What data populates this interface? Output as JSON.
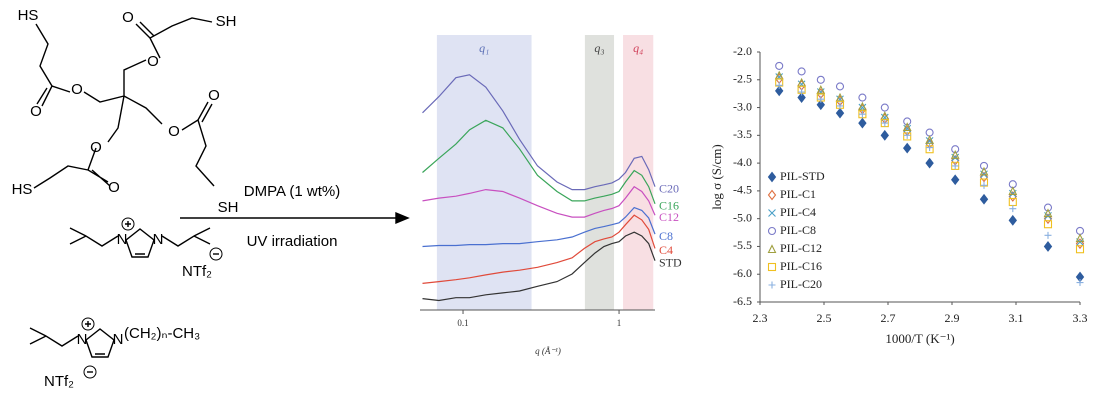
{
  "scheme": {
    "crosslinker_atoms": [
      "HS",
      "O",
      "O",
      "O",
      "O",
      "SH",
      "O",
      "O",
      "SH",
      "O",
      "O",
      "HS"
    ],
    "reagent": "DMPA (1 wt%)",
    "condition": "UV irradiation",
    "monomer1_atoms": [
      "N",
      "N",
      "NTf₂"
    ],
    "monomer2_atoms": [
      "N",
      "N",
      "(CH₂)ₙ-CH₃",
      "NTf₂"
    ]
  },
  "chart_data": [
    {
      "type": "line",
      "xlabel": "q (Å⁻¹)",
      "log_x": true,
      "xlim": [
        0.053,
        1.7
      ],
      "ylim": [
        0,
        290
      ],
      "xticks": [
        0.1,
        1
      ],
      "bands": [
        {
          "label": "q₁",
          "range": [
            0.068,
            0.275
          ],
          "color": "#dfe3f3",
          "text_color": "#5b6fb5"
        },
        {
          "label": "q₃",
          "range": [
            0.604,
            0.929
          ],
          "color": "#dfe1dd",
          "text_color": "#444444"
        },
        {
          "label": "q₄",
          "range": [
            1.061,
            1.657
          ],
          "color": "#f8dfe3",
          "text_color": "#d0405a"
        }
      ],
      "x": [
        0.055,
        0.07,
        0.09,
        0.11,
        0.14,
        0.18,
        0.23,
        0.3,
        0.4,
        0.5,
        0.6,
        0.7,
        0.8,
        0.9,
        1.0,
        1.1,
        1.25,
        1.4,
        1.55,
        1.7
      ],
      "series": [
        {
          "name": "C20",
          "color": "#6a6ab8",
          "values": [
            208,
            225,
            245,
            248,
            235,
            210,
            180,
            152,
            135,
            127,
            127,
            130,
            132,
            134,
            138,
            145,
            160,
            162,
            148,
            130
          ]
        },
        {
          "name": "C16",
          "color": "#3aa55a",
          "values": [
            145,
            160,
            175,
            190,
            200,
            192,
            170,
            142,
            125,
            115,
            115,
            118,
            120,
            122,
            125,
            135,
            147,
            142,
            130,
            112
          ]
        },
        {
          "name": "C12",
          "color": "#c850c0",
          "values": [
            115,
            118,
            120,
            123,
            127,
            125,
            118,
            110,
            102,
            98,
            98,
            102,
            105,
            107,
            110,
            118,
            130,
            125,
            115,
            100
          ]
        },
        {
          "name": "C8",
          "color": "#4a70d0",
          "values": [
            67,
            68,
            68,
            69,
            69,
            70,
            70,
            72,
            74,
            77,
            82,
            86,
            88,
            90,
            92,
            98,
            108,
            105,
            97,
            80
          ]
        },
        {
          "name": "C4",
          "color": "#e04a3a",
          "values": [
            28,
            30,
            32,
            34,
            37,
            40,
            42,
            45,
            50,
            55,
            65,
            72,
            75,
            77,
            82,
            90,
            100,
            95,
            85,
            65
          ]
        },
        {
          "name": "STD",
          "color": "#333333",
          "values": [
            12,
            10,
            13,
            13,
            16,
            18,
            20,
            25,
            30,
            38,
            50,
            60,
            67,
            70,
            72,
            78,
            82,
            78,
            70,
            52
          ]
        }
      ]
    },
    {
      "type": "scatter",
      "xlabel": "1000/T (K⁻¹)",
      "ylabel": "log σ (S/cm)",
      "xlim": [
        2.3,
        3.3
      ],
      "ylim": [
        -6.5,
        -2
      ],
      "xticks": [
        2.3,
        2.5,
        2.7,
        2.9,
        3.1,
        3.3
      ],
      "yticks": [
        -6.5,
        {
          "value": -6,
          "label": "-6.0"
        },
        -5.5,
        {
          "value": -5,
          "label": "-5.0"
        },
        -4.5,
        {
          "value": -4,
          "label": "-4.0"
        },
        -3.5,
        {
          "value": -3,
          "label": "-3.0"
        },
        -2.5,
        {
          "value": -2,
          "label": "-2.0"
        }
      ],
      "legend": "left",
      "x": [
        2.36,
        2.43,
        2.49,
        2.55,
        2.62,
        2.69,
        2.76,
        2.83,
        2.91,
        3.0,
        3.09,
        3.2,
        3.3
      ],
      "series": [
        {
          "name": "PIL-STD",
          "color": "#2e5c9e",
          "marker": "diamond-filled",
          "values": [
            -2.7,
            -2.82,
            -2.95,
            -3.1,
            -3.28,
            -3.5,
            -3.73,
            -4.0,
            -4.3,
            -4.65,
            -5.03,
            -5.5,
            -6.05
          ]
        },
        {
          "name": "PIL-C1",
          "color": "#e07040",
          "marker": "diamond",
          "values": [
            -2.48,
            -2.6,
            -2.75,
            -2.88,
            -3.03,
            -3.2,
            -3.42,
            -3.65,
            -3.95,
            -4.25,
            -4.6,
            -5.0,
            -5.45
          ]
        },
        {
          "name": "PIL-C4",
          "color": "#4aa0c8",
          "marker": "cross",
          "values": [
            -2.45,
            -2.58,
            -2.72,
            -2.85,
            -3.0,
            -3.18,
            -3.38,
            -3.6,
            -3.9,
            -4.2,
            -4.55,
            -4.95,
            -5.42
          ]
        },
        {
          "name": "PIL-C8",
          "color": "#7a7ac8",
          "marker": "circle",
          "values": [
            -2.25,
            -2.35,
            -2.5,
            -2.62,
            -2.82,
            -3.0,
            -3.25,
            -3.45,
            -3.75,
            -4.05,
            -4.38,
            -4.8,
            -5.22
          ]
        },
        {
          "name": "PIL-C12",
          "color": "#a0a040",
          "marker": "triangle",
          "values": [
            -2.42,
            -2.55,
            -2.68,
            -2.82,
            -2.98,
            -3.15,
            -3.35,
            -3.58,
            -3.85,
            -4.15,
            -4.5,
            -4.9,
            -5.35
          ]
        },
        {
          "name": "PIL-C16",
          "color": "#f0c020",
          "marker": "square",
          "values": [
            -2.55,
            -2.68,
            -2.82,
            -2.95,
            -3.12,
            -3.28,
            -3.52,
            -3.75,
            -4.05,
            -4.35,
            -4.7,
            -5.1,
            -5.55
          ]
        },
        {
          "name": "PIL-C20",
          "color": "#8ab0e0",
          "marker": "plus",
          "values": [
            -2.6,
            -2.72,
            -2.85,
            -2.97,
            -3.12,
            -3.28,
            -3.5,
            -3.72,
            -4.05,
            -4.4,
            -4.82,
            -5.3,
            -6.15
          ]
        }
      ]
    }
  ]
}
